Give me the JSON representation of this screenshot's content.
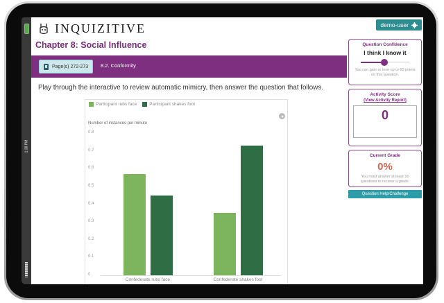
{
  "device": {
    "status_time": "1:38 PM"
  },
  "header": {
    "logo_text": "INQUIZITIVE",
    "user_button_label": "demo-user",
    "user_icon": "gear-icon"
  },
  "chapter": {
    "title": "Chapter 8: Social Influence",
    "pages_label": "Page(s) 272-273",
    "section_label": "8.2. Conformity"
  },
  "question": {
    "prompt": "Play through the interactive to review automatic mimicry, then answer the question that follows."
  },
  "sidebar": {
    "confidence": {
      "title": "Question Confidence",
      "value": "I think I know it",
      "note": "You can gain or lose up to 60 points on this question."
    },
    "activity": {
      "title": "Activity Score",
      "link": "(View Activity Report)",
      "score": "0"
    },
    "grade": {
      "title": "Current Grade",
      "value": "0%",
      "note": "You must answer at least 20 questions to receive a grade."
    },
    "help_button": "Question Help/Challenge"
  },
  "chart_data": {
    "type": "bar",
    "title": "",
    "ylabel": "Number of instances per minute",
    "xlabel": "",
    "categories": [
      "Confederate rubs face",
      "Confederate shakes foot"
    ],
    "series": [
      {
        "name": "Participant rubs face",
        "color": "#7db55f",
        "values": [
          0.57,
          0.35
        ]
      },
      {
        "name": "Participant shakes foot",
        "color": "#2f6e45",
        "values": [
          0.45,
          0.73
        ]
      }
    ],
    "ylim": [
      0,
      0.8
    ],
    "yticks": [
      "0",
      "0.1",
      "0.2",
      "0.3",
      "0.4",
      "0.5",
      "0.6",
      "0.7",
      "0.8"
    ],
    "legend_position": "top-left",
    "grid": false
  },
  "colors": {
    "brand_purple": "#7f2f80",
    "teal": "#2e8b8f",
    "grade_red": "#d0654f"
  }
}
